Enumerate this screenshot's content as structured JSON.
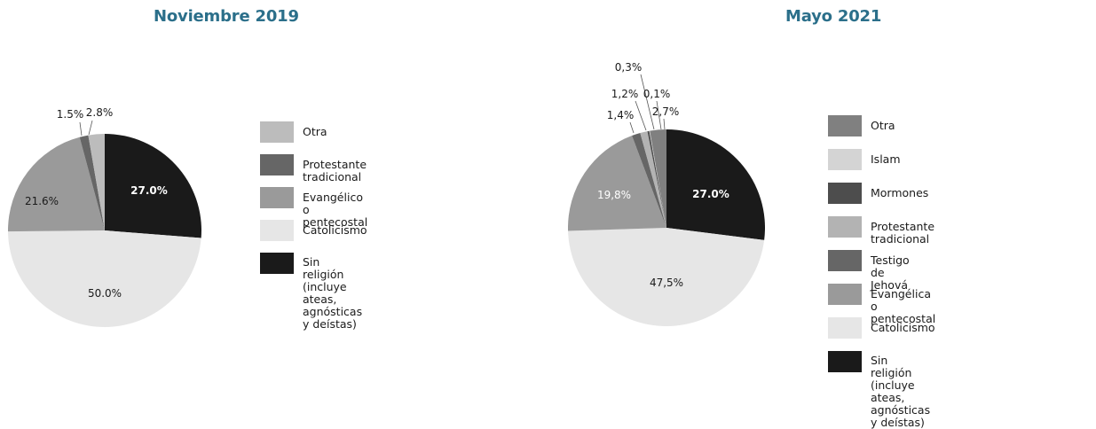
{
  "chart_data": [
    {
      "type": "pie",
      "title": "Noviembre 2019",
      "slices": [
        {
          "label": "Sin religión\n(incluye ateas, agnósticas y deístas)",
          "value": 27.0,
          "display": "27.0%",
          "color": "#1a1a1a",
          "label_color": "#ffffff"
        },
        {
          "label": "Catolicismo",
          "value": 50.0,
          "display": "50.0%",
          "color": "#e6e6e6",
          "label_color": "#1a1a1a"
        },
        {
          "label": "Evangélico o pentecostal",
          "value": 21.6,
          "display": "21.6%",
          "color": "#9a9a9a",
          "label_color": "#1a1a1a"
        },
        {
          "label": "Protestante tradicional",
          "value": 1.5,
          "display": "1.5%",
          "color": "#666666",
          "label_color": "#1a1a1a"
        },
        {
          "label": "Otra",
          "value": 2.8,
          "display": "2.8%",
          "color": "#bcbcbc",
          "label_color": "#1a1a1a"
        }
      ],
      "legend": [
        {
          "label": "Otra",
          "color": "#bcbcbc"
        },
        {
          "label": "Protestante tradicional",
          "color": "#666666"
        },
        {
          "label": "Evangélico o pentecostal",
          "color": "#9a9a9a"
        },
        {
          "label": "Catolicismo",
          "color": "#e6e6e6"
        },
        {
          "label": "Sin religión\n(incluye ateas, agnósticas y deístas)",
          "color": "#1a1a1a"
        }
      ]
    },
    {
      "type": "pie",
      "title": "Mayo 2021",
      "slices": [
        {
          "label": "Sin religión\n(incluye ateas, agnósticas y deístas)",
          "value": 27.0,
          "display": "27.0%",
          "color": "#1a1a1a",
          "label_color": "#ffffff"
        },
        {
          "label": "Catolicismo",
          "value": 47.5,
          "display": "47,5%",
          "color": "#e6e6e6",
          "label_color": "#1a1a1a"
        },
        {
          "label": "Evangélica o pentecostal",
          "value": 19.8,
          "display": "19,8%",
          "color": "#9a9a9a",
          "label_color": "#ffffff"
        },
        {
          "label": "Testigo de Jehová",
          "value": 1.4,
          "display": "1,4%",
          "color": "#666666",
          "label_color": "#1a1a1a"
        },
        {
          "label": "Protestante tradicional",
          "value": 1.2,
          "display": "1,2%",
          "color": "#b3b3b3",
          "label_color": "#1a1a1a"
        },
        {
          "label": "Mormones",
          "value": 0.3,
          "display": "0,3%",
          "color": "#4d4d4d",
          "label_color": "#1a1a1a"
        },
        {
          "label": "Islam",
          "value": 0.1,
          "display": "0,1%",
          "color": "#d4d4d4",
          "label_color": "#1a1a1a"
        },
        {
          "label": "Otra",
          "value": 2.7,
          "display": "2,7%",
          "color": "#808080",
          "label_color": "#1a1a1a"
        }
      ],
      "legend": [
        {
          "label": "Otra",
          "color": "#808080"
        },
        {
          "label": "Islam",
          "color": "#d4d4d4"
        },
        {
          "label": "Mormones",
          "color": "#4d4d4d"
        },
        {
          "label": "Protestante tradicional",
          "color": "#b3b3b3"
        },
        {
          "label": "Testigo de Jehová",
          "color": "#666666"
        },
        {
          "label": "Evangélica o pentecostal",
          "color": "#9a9a9a"
        },
        {
          "label": "Catolicismo",
          "color": "#e6e6e6"
        },
        {
          "label": "Sin religión\n(incluye ateas, agnósticas y deístas)",
          "color": "#1a1a1a"
        }
      ]
    }
  ]
}
